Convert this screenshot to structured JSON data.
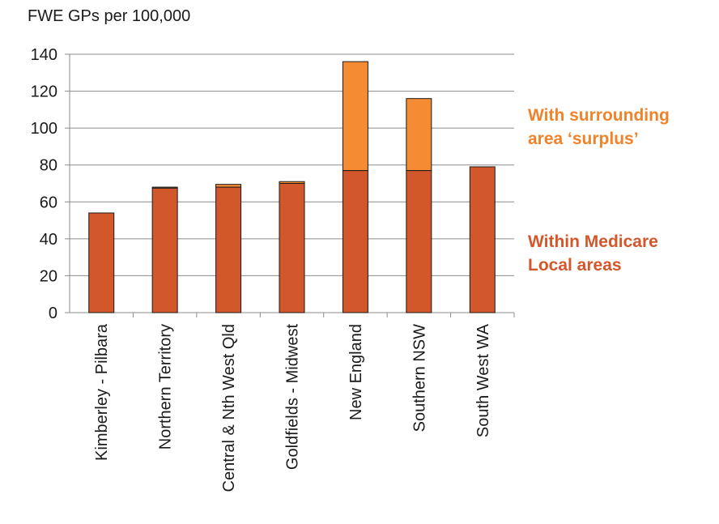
{
  "chart_data": {
    "type": "bar",
    "stacked": true,
    "ylabel": "FWE GPs per 100,000",
    "ylim": [
      0,
      140
    ],
    "yticks": [
      0,
      20,
      40,
      60,
      80,
      100,
      120,
      140
    ],
    "grid": true,
    "categories": [
      "Kimberley - Pilbara",
      "Northern Territory",
      "Central & Nth West Qld",
      "Goldfields - Midwest",
      "New England",
      "Southern NSW",
      "South West WA"
    ],
    "series": [
      {
        "name": "Within Medicare Local areas",
        "color": "#d2572a",
        "values": [
          54,
          67.5,
          68,
          70,
          77,
          77,
          79
        ]
      },
      {
        "name": "With surrounding area ‘surplus’",
        "color": "#f58c34",
        "values": [
          0,
          0.5,
          1.5,
          1,
          59,
          39,
          0
        ]
      }
    ]
  },
  "legend": {
    "surplus_line1": "With surrounding",
    "surplus_line2": "area ‘surplus’",
    "within_line1": "Within Medicare",
    "within_line2": "Local areas"
  }
}
